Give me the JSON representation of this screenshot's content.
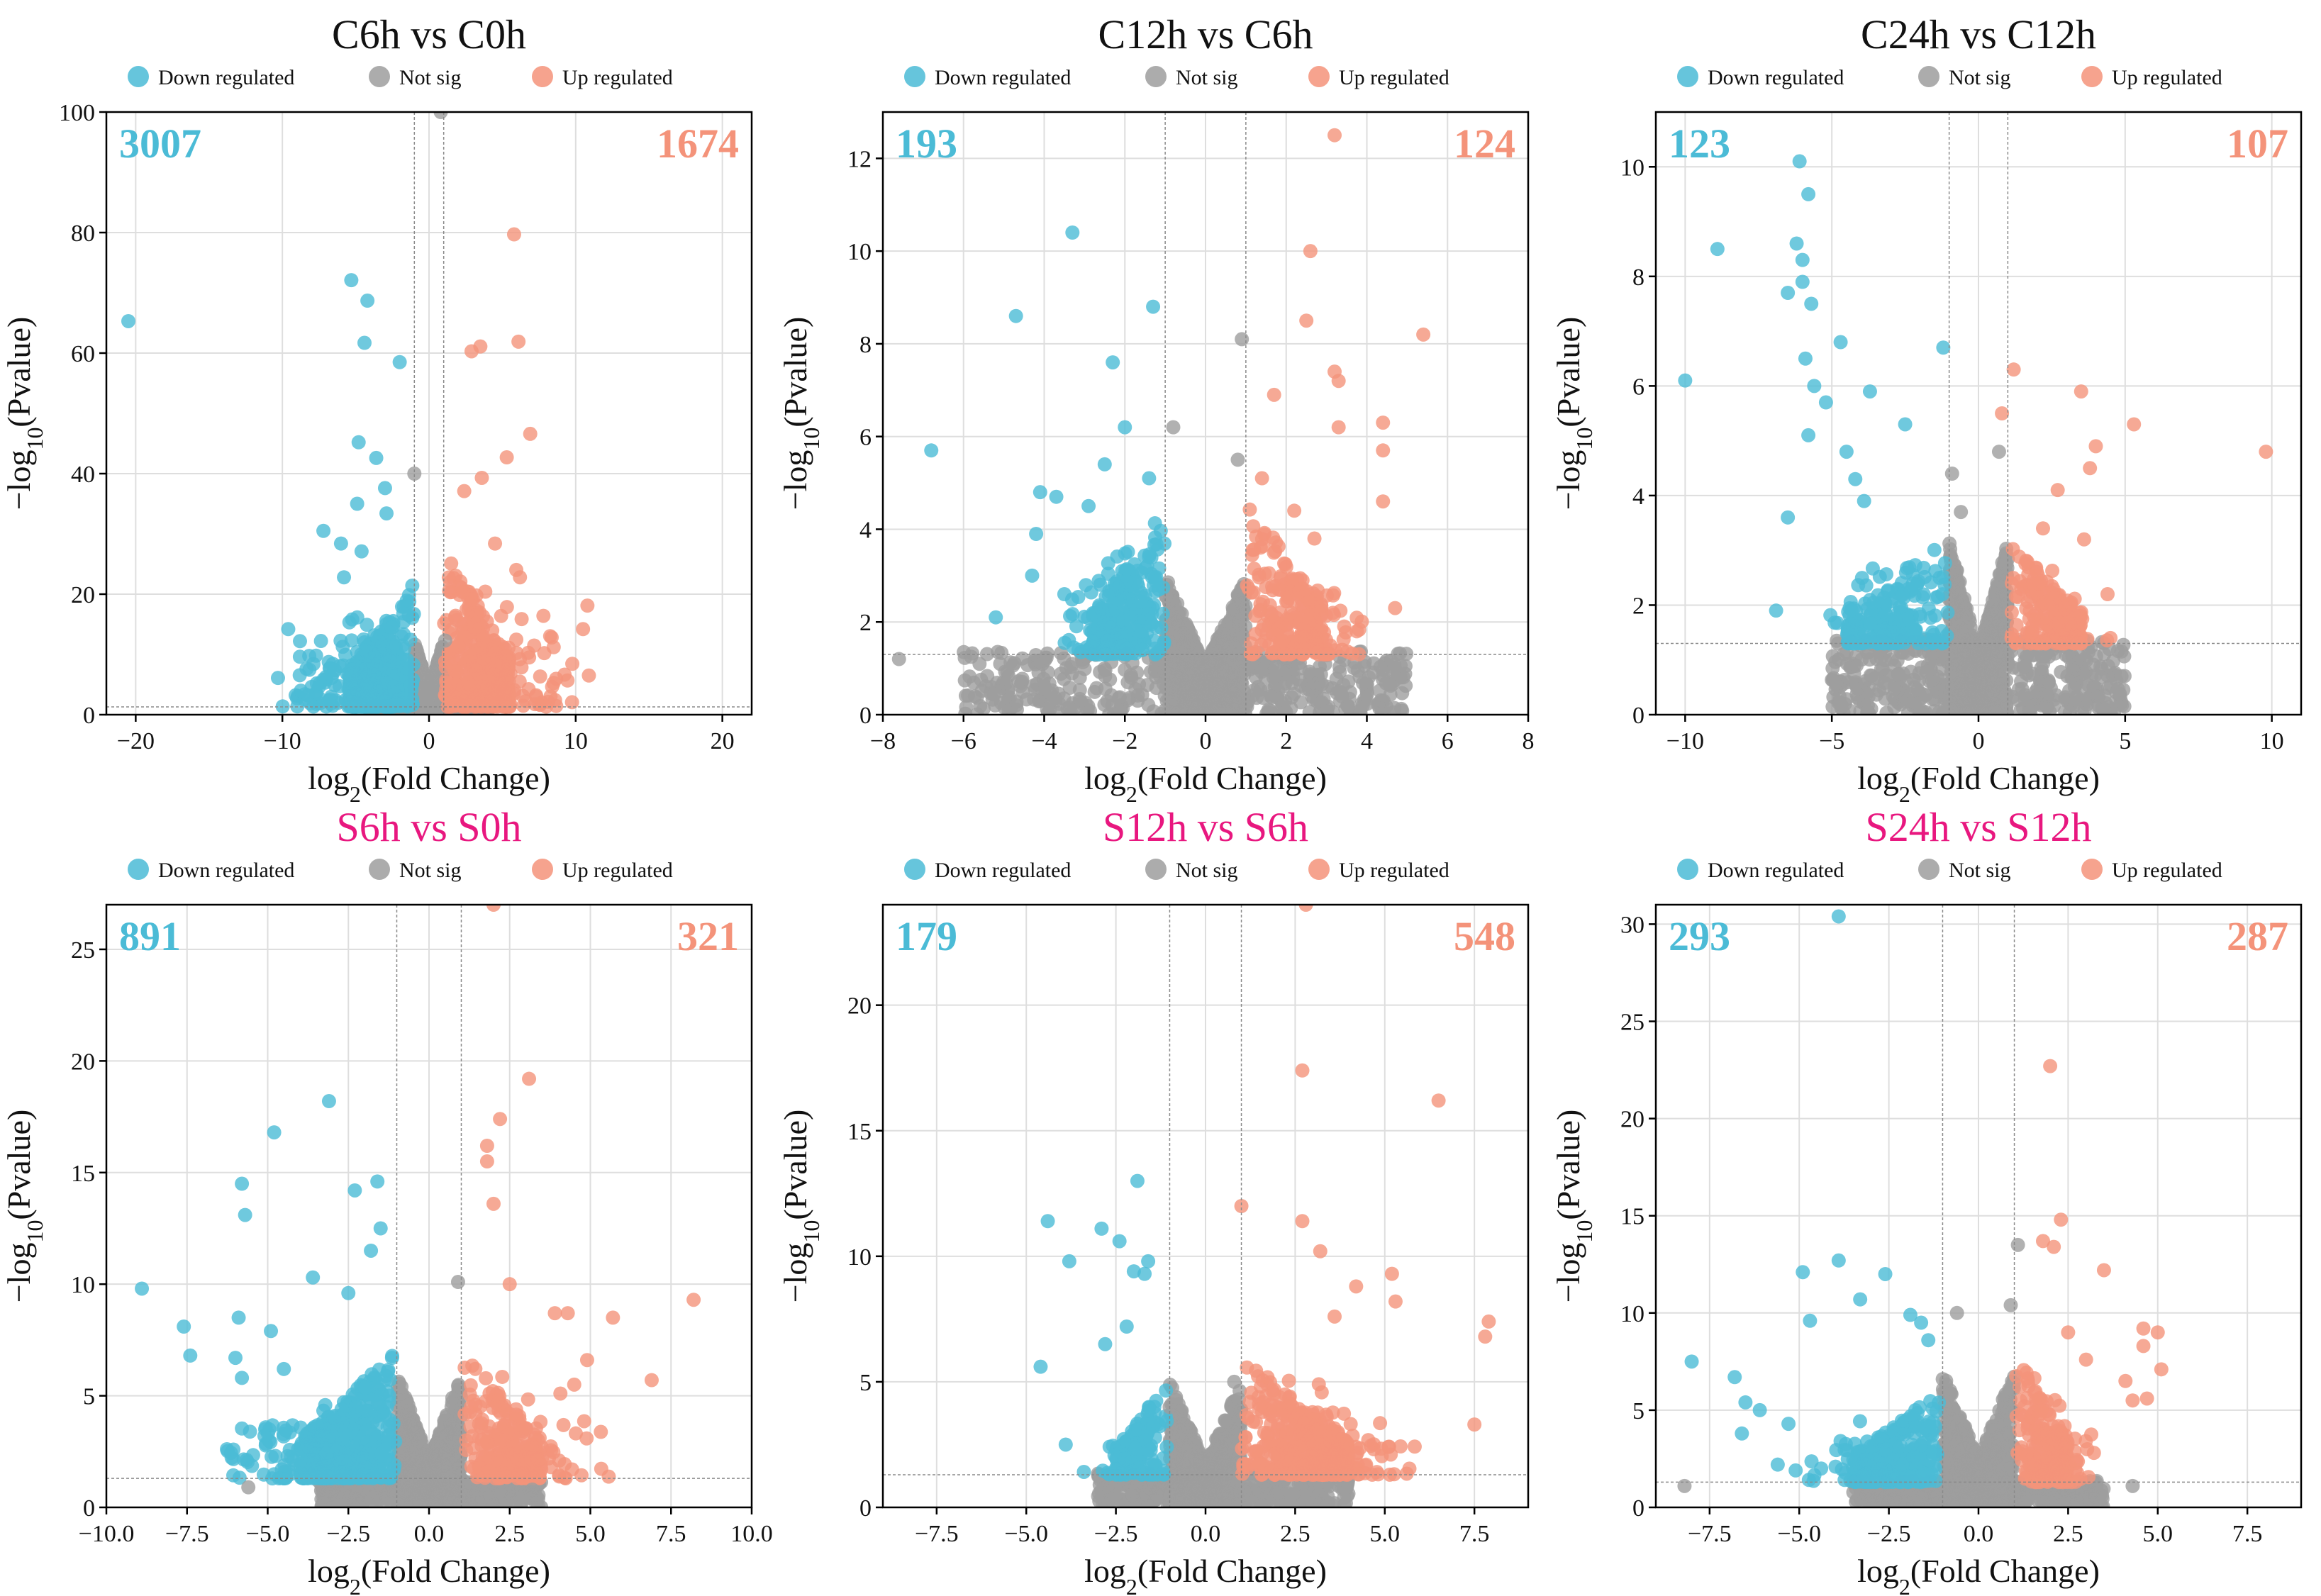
{
  "colors": {
    "down": "#4bbbd6",
    "notsig": "#9e9e9e",
    "up": "#f4937a",
    "title_c": "#111111",
    "title_s": "#e8177f",
    "grid": "#dedede",
    "threshold": "#8a8a8a"
  },
  "legend": {
    "down": "Down regulated",
    "notsig": "Not sig",
    "up": "Up regulated"
  },
  "chart_data": [
    {
      "type": "scatter",
      "title": "C6h vs C0h",
      "title_color": "c",
      "xlabel": "log2(Fold Change)",
      "ylabel": "-log10(Pvalue)",
      "xlim": [
        -22,
        22
      ],
      "ylim": [
        0,
        100
      ],
      "xticks": [
        -20,
        -10,
        0,
        10,
        20
      ],
      "yticks": [
        0,
        20,
        40,
        60,
        80,
        100
      ],
      "down_count": "3007",
      "up_count": "1674",
      "fc_threshold": 1,
      "p_threshold": 1.3,
      "down_points": [
        [
          -20.5,
          65.3
        ],
        [
          -5.3,
          72.1
        ],
        [
          -4.2,
          68.7
        ],
        [
          -4.4,
          61.7
        ],
        [
          -2,
          58.5
        ],
        [
          -9.6,
          14.2
        ],
        [
          -10.3,
          6.1
        ],
        [
          -7.2,
          30.5
        ],
        [
          -4.8,
          45.2
        ],
        [
          -3,
          37.6
        ],
        [
          -2.9,
          33.4
        ],
        [
          -5.8,
          22.8
        ],
        [
          -4.6,
          27.1
        ],
        [
          -6,
          28.4
        ],
        [
          -4.9,
          35
        ],
        [
          -3.6,
          42.6
        ],
        [
          -8.8,
          12.2
        ],
        [
          -7.7,
          9.8
        ]
      ],
      "up_points": [
        [
          5.8,
          79.7
        ],
        [
          6.1,
          61.9
        ],
        [
          6.9,
          46.6
        ],
        [
          3.5,
          61.1
        ],
        [
          2.9,
          60.3
        ],
        [
          5.3,
          42.7
        ],
        [
          3.6,
          39.3
        ],
        [
          2.4,
          37.1
        ],
        [
          10.8,
          18.1
        ],
        [
          10.5,
          14.2
        ],
        [
          10.9,
          6.5
        ],
        [
          8.5,
          11.2
        ],
        [
          6.2,
          22.8
        ],
        [
          7.8,
          16.4
        ],
        [
          4.5,
          28.4
        ]
      ],
      "notsig_points": [
        [
          0.8,
          100
        ],
        [
          -1,
          40
        ],
        [
          1.1,
          12.3
        ]
      ],
      "down_cloud": {
        "xmin": -5.5,
        "xmax": -1,
        "ymin": 1.3,
        "ymax": 22,
        "spread": 4.5,
        "n": 520
      },
      "up_cloud": {
        "xmin": 1,
        "xmax": 5.5,
        "ymin": 1.3,
        "ymax": 28,
        "spread": 5,
        "n": 460
      },
      "ns_cloud": {
        "xmin": -4,
        "xmax": 4,
        "ymin": 0,
        "ymax": 12,
        "n": 900
      }
    },
    {
      "type": "scatter",
      "title": "C12h vs C6h",
      "title_color": "c",
      "xlabel": "log2(Fold Change)",
      "ylabel": "-log10(Pvalue)",
      "xlim": [
        -8,
        8
      ],
      "ylim": [
        0,
        13
      ],
      "xticks": [
        -8,
        -6,
        -4,
        -2,
        0,
        2,
        4,
        6,
        8
      ],
      "yticks": [
        0,
        2,
        4,
        6,
        8,
        10,
        12
      ],
      "down_count": "193",
      "up_count": "124",
      "fc_threshold": 1,
      "p_threshold": 1.3,
      "down_points": [
        [
          -3.3,
          10.4
        ],
        [
          -4.7,
          8.6
        ],
        [
          -1.3,
          8.8
        ],
        [
          -2.3,
          7.6
        ],
        [
          -6.8,
          5.7
        ],
        [
          -3.7,
          4.7
        ],
        [
          -4.1,
          4.8
        ],
        [
          -4.2,
          3.9
        ],
        [
          -4.3,
          3
        ],
        [
          -5.2,
          2.1
        ],
        [
          -2.9,
          4.5
        ],
        [
          -2.5,
          5.4
        ],
        [
          -3.5,
          2.6
        ],
        [
          -2,
          6.2
        ],
        [
          -1.4,
          5.1
        ]
      ],
      "up_points": [
        [
          3.2,
          12.5
        ],
        [
          2.6,
          10
        ],
        [
          2.5,
          8.5
        ],
        [
          5.4,
          8.2
        ],
        [
          3.2,
          7.4
        ],
        [
          3.3,
          7.2
        ],
        [
          1.7,
          6.9
        ],
        [
          4.4,
          6.3
        ],
        [
          3.3,
          6.2
        ],
        [
          4.4,
          5.7
        ],
        [
          4.4,
          4.6
        ],
        [
          4.7,
          2.3
        ],
        [
          2.2,
          4.4
        ],
        [
          1.4,
          5.1
        ],
        [
          2.7,
          3.8
        ]
      ],
      "notsig_points": [
        [
          0.9,
          8.1
        ],
        [
          0.8,
          5.5
        ],
        [
          -0.8,
          6.2
        ],
        [
          -7.6,
          1.2
        ]
      ],
      "down_cloud": {
        "xmin": -2.8,
        "xmax": -1,
        "ymin": 1.3,
        "ymax": 4.3,
        "spread": 1,
        "n": 320
      },
      "up_cloud": {
        "xmin": 1,
        "xmax": 3,
        "ymin": 1.3,
        "ymax": 4.6,
        "spread": 1,
        "n": 260
      },
      "ns_cloud": {
        "xmin": -6,
        "xmax": 5,
        "ymin": 0,
        "ymax": 3,
        "n": 1200
      }
    },
    {
      "type": "scatter",
      "title": "C24h vs C12h",
      "title_color": "c",
      "xlabel": "log2(Fold Change)",
      "ylabel": "-log10(Pvalue)",
      "xlim": [
        -11,
        11
      ],
      "ylim": [
        0,
        11
      ],
      "xticks": [
        -10,
        -5,
        0,
        5,
        10
      ],
      "yticks": [
        0,
        2,
        4,
        6,
        8,
        10
      ],
      "down_count": "123",
      "up_count": "107",
      "fc_threshold": 1,
      "p_threshold": 1.3,
      "down_points": [
        [
          -6.1,
          10.1
        ],
        [
          -5.8,
          9.5
        ],
        [
          -8.9,
          8.5
        ],
        [
          -6.2,
          8.6
        ],
        [
          -6,
          8.3
        ],
        [
          -6,
          7.9
        ],
        [
          -5.7,
          7.5
        ],
        [
          -10,
          6.1
        ],
        [
          -6.5,
          7.7
        ],
        [
          -4.7,
          6.8
        ],
        [
          -5.9,
          6.5
        ],
        [
          -5.6,
          6
        ],
        [
          -5.2,
          5.7
        ],
        [
          -3.7,
          5.9
        ],
        [
          -1.2,
          6.7
        ],
        [
          -2.5,
          5.3
        ],
        [
          -5.8,
          5.1
        ],
        [
          -4.5,
          4.8
        ],
        [
          -4.2,
          4.3
        ],
        [
          -3.9,
          3.9
        ],
        [
          -6.9,
          1.9
        ],
        [
          -6.5,
          3.6
        ]
      ],
      "up_points": [
        [
          9.8,
          4.8
        ],
        [
          5.3,
          5.3
        ],
        [
          4,
          4.9
        ],
        [
          3.5,
          5.9
        ],
        [
          1.2,
          6.3
        ],
        [
          3.8,
          4.5
        ],
        [
          2.7,
          4.1
        ],
        [
          0.8,
          5.5
        ],
        [
          3.6,
          3.2
        ],
        [
          2.2,
          3.4
        ],
        [
          4.5,
          1.4
        ],
        [
          4.4,
          2.2
        ]
      ],
      "notsig_points": [
        [
          -0.9,
          4.4
        ],
        [
          0.7,
          4.8
        ],
        [
          -0.6,
          3.7
        ]
      ],
      "down_cloud": {
        "xmin": -4.5,
        "xmax": -1,
        "ymin": 1.3,
        "ymax": 3.2,
        "spread": 1.5,
        "n": 230
      },
      "up_cloud": {
        "xmin": 1,
        "xmax": 3.5,
        "ymin": 1.3,
        "ymax": 3.2,
        "spread": 1,
        "n": 200
      },
      "ns_cloud": {
        "xmin": -5,
        "xmax": 5,
        "ymin": 0,
        "ymax": 3.2,
        "n": 1200
      }
    },
    {
      "type": "scatter",
      "title": "S6h vs S0h",
      "title_color": "s",
      "xlabel": "log2(Fold Change)",
      "ylabel": "-log10(Pvalue)",
      "xlim": [
        -10,
        10
      ],
      "ylim": [
        0,
        27
      ],
      "xticks": [
        -10,
        -7.5,
        -5,
        -2.5,
        0,
        2.5,
        5,
        7.5,
        10
      ],
      "xticklabels": [
        "−10.0",
        "−7.5",
        "−5.0",
        "−2.5",
        "0.0",
        "2.5",
        "5.0",
        "7.5",
        "10.0"
      ],
      "yticks": [
        0,
        5,
        10,
        15,
        20,
        25
      ],
      "down_count": "891",
      "up_count": "321",
      "fc_threshold": 1,
      "p_threshold": 1.3,
      "down_points": [
        [
          -3.1,
          18.2
        ],
        [
          -4.8,
          16.8
        ],
        [
          -5.8,
          14.5
        ],
        [
          -5.7,
          13.1
        ],
        [
          -1.6,
          14.6
        ],
        [
          -2.3,
          14.2
        ],
        [
          -8.9,
          9.8
        ],
        [
          -7.6,
          8.1
        ],
        [
          -7.4,
          6.8
        ],
        [
          -5.9,
          8.5
        ],
        [
          -6,
          6.7
        ],
        [
          -5.8,
          5.8
        ],
        [
          -4.9,
          7.9
        ],
        [
          -4.5,
          6.2
        ],
        [
          -5.1,
          3.2
        ],
        [
          -2.5,
          9.6
        ],
        [
          -3.6,
          10.3
        ],
        [
          -1.5,
          12.5
        ],
        [
          -1.8,
          11.5
        ]
      ],
      "up_points": [
        [
          2,
          27
        ],
        [
          3.1,
          19.2
        ],
        [
          2.2,
          17.4
        ],
        [
          1.8,
          16.2
        ],
        [
          1.8,
          15.5
        ],
        [
          2,
          13.6
        ],
        [
          2.5,
          10
        ],
        [
          3.9,
          8.7
        ],
        [
          4.3,
          8.7
        ],
        [
          5.7,
          8.5
        ],
        [
          8.2,
          9.3
        ],
        [
          6.9,
          5.7
        ],
        [
          4.9,
          6.6
        ],
        [
          4.5,
          5.5
        ]
      ],
      "notsig_points": [
        [
          0.9,
          10.1
        ],
        [
          -5.6,
          0.9
        ],
        [
          3.2,
          0.8
        ]
      ],
      "down_cloud": {
        "xmin": -4,
        "xmax": -1,
        "ymin": 1.3,
        "ymax": 7,
        "spread": 2.5,
        "n": 560
      },
      "up_cloud": {
        "xmin": 1,
        "xmax": 3.5,
        "ymin": 1.3,
        "ymax": 7,
        "spread": 2.5,
        "n": 260
      },
      "ns_cloud": {
        "xmin": -3.5,
        "xmax": 3.5,
        "ymin": 0,
        "ymax": 6,
        "n": 900
      }
    },
    {
      "type": "scatter",
      "title": "S12h vs S6h",
      "title_color": "s",
      "xlabel": "log2(Fold Change)",
      "ylabel": "-log10(Pvalue)",
      "xlim": [
        -9,
        9
      ],
      "ylim": [
        0,
        24
      ],
      "xticks": [
        -7.5,
        -5,
        -2.5,
        0,
        2.5,
        5,
        7.5
      ],
      "xticklabels": [
        "−7.5",
        "−5.0",
        "−2.5",
        "0.0",
        "2.5",
        "5.0",
        "7.5"
      ],
      "yticks": [
        0,
        5,
        10,
        15,
        20
      ],
      "down_count": "179",
      "up_count": "548",
      "fc_threshold": 1,
      "p_threshold": 1.3,
      "down_points": [
        [
          -1.9,
          13
        ],
        [
          -4.4,
          11.4
        ],
        [
          -2.9,
          11.1
        ],
        [
          -2.4,
          10.6
        ],
        [
          -3.8,
          9.8
        ],
        [
          -1.6,
          9.8
        ],
        [
          -2,
          9.4
        ],
        [
          -1.7,
          9.3
        ],
        [
          -4.6,
          5.6
        ],
        [
          -3.9,
          2.5
        ],
        [
          -2.8,
          6.5
        ],
        [
          -2.2,
          7.2
        ]
      ],
      "up_points": [
        [
          2.8,
          24
        ],
        [
          2.7,
          17.4
        ],
        [
          6.5,
          16.2
        ],
        [
          1,
          12
        ],
        [
          2.7,
          11.4
        ],
        [
          3.2,
          10.2
        ],
        [
          4.2,
          8.8
        ],
        [
          5.2,
          9.3
        ],
        [
          7.9,
          7.4
        ],
        [
          7.8,
          6.8
        ],
        [
          7.5,
          3.3
        ],
        [
          5.3,
          8.2
        ],
        [
          3.6,
          7.6
        ]
      ],
      "notsig_points": [
        [
          -1,
          4
        ],
        [
          0.8,
          5
        ]
      ],
      "down_cloud": {
        "xmin": -2.5,
        "xmax": -1,
        "ymin": 1.3,
        "ymax": 5,
        "spread": 1,
        "n": 140
      },
      "up_cloud": {
        "xmin": 1,
        "xmax": 4,
        "ymin": 1.3,
        "ymax": 6,
        "spread": 2,
        "n": 480
      },
      "ns_cloud": {
        "xmin": -3,
        "xmax": 4,
        "ymin": 0,
        "ymax": 5,
        "n": 900
      }
    },
    {
      "type": "scatter",
      "title": "S24h vs S12h",
      "title_color": "s",
      "xlabel": "log2(Fold Change)",
      "ylabel": "-log10(Pvalue)",
      "xlim": [
        -9,
        9
      ],
      "ylim": [
        0,
        31
      ],
      "xticks": [
        -7.5,
        -5,
        -2.5,
        0,
        2.5,
        5,
        7.5
      ],
      "xticklabels": [
        "−7.5",
        "−5.0",
        "−2.5",
        "0.0",
        "2.5",
        "5.0",
        "7.5"
      ],
      "yticks": [
        0,
        5,
        10,
        15,
        20,
        25,
        30
      ],
      "down_count": "293",
      "up_count": "287",
      "fc_threshold": 1,
      "p_threshold": 1.3,
      "down_points": [
        [
          -3.9,
          30.4
        ],
        [
          -3.9,
          12.7
        ],
        [
          -4.9,
          12.1
        ],
        [
          -4.7,
          9.6
        ],
        [
          -2.6,
          12
        ],
        [
          -3.3,
          10.7
        ],
        [
          -1.9,
          9.9
        ],
        [
          -1.6,
          9.5
        ],
        [
          -1.4,
          8.6
        ],
        [
          -8,
          7.5
        ],
        [
          -6.8,
          6.7
        ],
        [
          -6.5,
          5.4
        ],
        [
          -6.1,
          5
        ],
        [
          -6.6,
          3.8
        ],
        [
          -5.3,
          4.3
        ],
        [
          -5.6,
          2.2
        ],
        [
          -5.1,
          1.9
        ]
      ],
      "up_points": [
        [
          2,
          22.7
        ],
        [
          2.3,
          14.8
        ],
        [
          1.8,
          13.7
        ],
        [
          2.1,
          13.4
        ],
        [
          3.5,
          12.2
        ],
        [
          4.6,
          9.2
        ],
        [
          5,
          9
        ],
        [
          4.6,
          8.3
        ],
        [
          5.1,
          7.1
        ],
        [
          4.1,
          6.5
        ],
        [
          4.3,
          5.5
        ],
        [
          4.7,
          5.6
        ],
        [
          2.5,
          9
        ],
        [
          3,
          7.6
        ]
      ],
      "notsig_points": [
        [
          1.1,
          13.5
        ],
        [
          0.9,
          10.4
        ],
        [
          -0.6,
          10
        ],
        [
          -8.2,
          1.1
        ],
        [
          4.3,
          1.1
        ]
      ],
      "down_cloud": {
        "xmin": -3.5,
        "xmax": -1,
        "ymin": 1.3,
        "ymax": 6,
        "spread": 1.5,
        "n": 330
      },
      "up_cloud": {
        "xmin": 1,
        "xmax": 2.5,
        "ymin": 1.3,
        "ymax": 8,
        "spread": 1,
        "n": 260
      },
      "ns_cloud": {
        "xmin": -3.5,
        "xmax": 3.5,
        "ymin": 0,
        "ymax": 7,
        "n": 900
      }
    }
  ]
}
